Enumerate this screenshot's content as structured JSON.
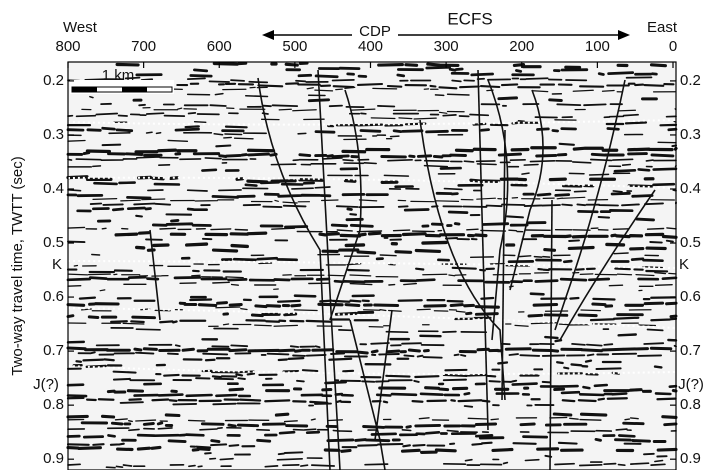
{
  "chart_data": {
    "type": "seismic",
    "x_start_label": "West",
    "x_end_label": "East",
    "x_axis_label": "CDP",
    "fault_label": "ECFS",
    "y_axis_label": "Two-way travel time, TWTT (sec)",
    "scale_bar_label": "1 km",
    "xlim": [
      800,
      0
    ],
    "xticks": [
      800,
      700,
      600,
      500,
      400,
      300,
      200,
      100,
      0
    ],
    "ylim": [
      0.165,
      0.92
    ],
    "yticks": [
      0.2,
      0.3,
      0.4,
      0.5,
      0.6,
      0.7,
      0.8,
      0.9
    ],
    "horizon_labels": [
      "K",
      "J(?)"
    ]
  }
}
